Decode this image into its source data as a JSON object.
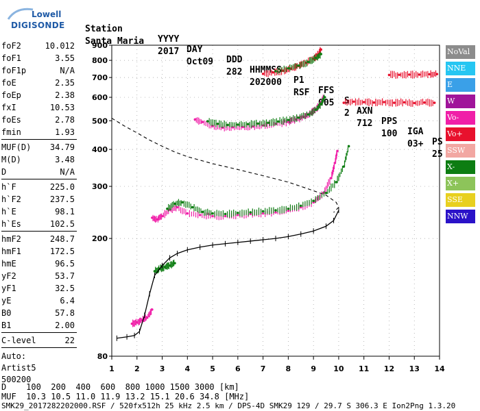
{
  "logo": {
    "line1": "Lowell",
    "line2": "DIGISONDE"
  },
  "header": {
    "labels": [
      "Station",
      "YYYY",
      "DAY",
      "DDD",
      "HHMMSS",
      "P1",
      "FFS",
      "S",
      "AXN",
      "PPS",
      "IGA",
      "PS"
    ],
    "values": [
      "Santa Maria",
      "2017",
      "Oct09",
      "282",
      "202000",
      "RSF",
      "005",
      "2",
      "712",
      "100",
      "03+",
      "25"
    ]
  },
  "params": {
    "group1": [
      {
        "k": "foF2",
        "v": "10.012"
      },
      {
        "k": "foF1",
        "v": "3.55"
      },
      {
        "k": "foF1p",
        "v": "N/A"
      },
      {
        "k": "foE",
        "v": "2.35"
      },
      {
        "k": "foEp",
        "v": "2.38"
      },
      {
        "k": "fxI",
        "v": "10.53"
      },
      {
        "k": "foEs",
        "v": "2.78"
      },
      {
        "k": "fmin",
        "v": "1.93"
      }
    ],
    "group2": [
      {
        "k": "MUF(D)",
        "v": "34.79"
      },
      {
        "k": "M(D)",
        "v": "3.48"
      },
      {
        "k": "D",
        "v": "N/A"
      }
    ],
    "group3": [
      {
        "k": "h`F",
        "v": "225.0"
      },
      {
        "k": "h`F2",
        "v": "237.5"
      },
      {
        "k": "h`E",
        "v": "98.1"
      },
      {
        "k": "h`Es",
        "v": "102.5"
      }
    ],
    "group4": [
      {
        "k": "hmF2",
        "v": "248.7"
      },
      {
        "k": "hmF1",
        "v": "172.5"
      },
      {
        "k": "hmE",
        "v": "96.5"
      },
      {
        "k": "yF2",
        "v": "53.7"
      },
      {
        "k": "yF1",
        "v": "32.5"
      },
      {
        "k": "yE",
        "v": "6.4"
      },
      {
        "k": "B0",
        "v": "57.8"
      },
      {
        "k": "B1",
        "v": "2.00"
      }
    ],
    "group5": [
      {
        "k": "C-level",
        "v": "22"
      }
    ],
    "auto": [
      "Auto:",
      "Artist5",
      "500200"
    ]
  },
  "legend": [
    {
      "label": "NoVal",
      "color": "#8c8c8c"
    },
    {
      "label": "NNE",
      "color": "#26c6f2"
    },
    {
      "label": "E",
      "color": "#3aa0e8"
    },
    {
      "label": "W",
      "color": "#a0149a"
    },
    {
      "label": "Vo-",
      "color": "#f01fa8"
    },
    {
      "label": "Vo+",
      "color": "#e8112d"
    },
    {
      "label": "SSW",
      "color": "#f2a7a2"
    },
    {
      "label": "X-",
      "color": "#0d7d12"
    },
    {
      "label": "X+",
      "color": "#8dc45a"
    },
    {
      "label": "SSE",
      "color": "#e8d020"
    },
    {
      "label": "NNW",
      "color": "#2a12c8"
    }
  ],
  "footer": {
    "line1": "D    100  200  400  600  800 1000 1500 3000 [km]",
    "line2": "MUF  10.3 10.5 11.0 11.9 13.2 15.1 20.6 34.8 [MHz]",
    "line3": "SMK29_2017282202000.RSF / 520fx512h 25 kHz 2.5 km / DPS-4D SMK29 129 / 29.7 S 306.3 E Ion2Png 1.3.20"
  },
  "chart_data": {
    "type": "scatter",
    "xlim": [
      1,
      14
    ],
    "ylim": [
      80,
      900
    ],
    "x_ticks": [
      1,
      2,
      3,
      4,
      5,
      6,
      7,
      8,
      9,
      10,
      11,
      12,
      13,
      14
    ],
    "y_ticks": [
      80,
      200,
      300,
      400,
      500,
      600,
      700,
      800,
      900
    ],
    "y_scale": "log",
    "grid": true,
    "xlabel": "",
    "ylabel": "",
    "series": [
      {
        "color": "#f01fa8",
        "points": [
          [
            2.6,
            235
          ],
          [
            2.8,
            232
          ],
          [
            3.0,
            238
          ],
          [
            3.3,
            250
          ],
          [
            3.6,
            255
          ],
          [
            4.0,
            243
          ],
          [
            4.5,
            240
          ],
          [
            5.0,
            238
          ],
          [
            5.5,
            238
          ],
          [
            6.0,
            240
          ],
          [
            6.5,
            242
          ],
          [
            7.0,
            243
          ],
          [
            7.5,
            245
          ],
          [
            8.0,
            248
          ],
          [
            8.5,
            255
          ],
          [
            9.0,
            265
          ],
          [
            9.4,
            285
          ],
          [
            9.7,
            320
          ],
          [
            9.85,
            360
          ],
          [
            9.95,
            395
          ]
        ]
      },
      {
        "color": "#0d7d12",
        "points": [
          [
            3.2,
            252
          ],
          [
            3.5,
            262
          ],
          [
            3.8,
            265
          ],
          [
            4.2,
            255
          ],
          [
            4.6,
            246
          ],
          [
            5.0,
            243
          ],
          [
            5.5,
            242
          ],
          [
            6.0,
            244
          ],
          [
            6.5,
            245
          ],
          [
            7.0,
            247
          ],
          [
            7.5,
            249
          ],
          [
            8.0,
            252
          ],
          [
            8.5,
            258
          ],
          [
            9.0,
            268
          ],
          [
            9.5,
            285
          ],
          [
            9.9,
            310
          ],
          [
            10.2,
            350
          ],
          [
            10.4,
            410
          ]
        ]
      },
      {
        "color": "#f01fa8",
        "points": [
          [
            4.3,
            505
          ],
          [
            4.6,
            495
          ],
          [
            5.0,
            480
          ],
          [
            5.4,
            474
          ],
          [
            5.8,
            475
          ],
          [
            6.2,
            476
          ],
          [
            6.6,
            478
          ],
          [
            7.0,
            482
          ],
          [
            7.5,
            488
          ],
          [
            8.0,
            495
          ],
          [
            8.3,
            505
          ],
          [
            8.6,
            515
          ],
          [
            8.9,
            530
          ],
          [
            9.1,
            548
          ],
          [
            9.3,
            570
          ],
          [
            9.4,
            600
          ]
        ]
      },
      {
        "color": "#0d7d12",
        "points": [
          [
            4.8,
            498
          ],
          [
            5.2,
            488
          ],
          [
            5.6,
            484
          ],
          [
            6.0,
            485
          ],
          [
            6.4,
            487
          ],
          [
            6.8,
            489
          ],
          [
            7.2,
            492
          ],
          [
            7.6,
            497
          ],
          [
            8.0,
            503
          ],
          [
            8.4,
            512
          ],
          [
            8.8,
            525
          ],
          [
            9.1,
            545
          ],
          [
            9.3,
            570
          ],
          [
            9.45,
            600
          ]
        ]
      },
      {
        "color": "#e8112d",
        "points": [
          [
            7.0,
            720
          ],
          [
            7.4,
            728
          ],
          [
            7.8,
            738
          ],
          [
            8.1,
            750
          ],
          [
            8.4,
            765
          ],
          [
            8.7,
            785
          ],
          [
            9.0,
            810
          ],
          [
            9.2,
            840
          ],
          [
            9.3,
            870
          ]
        ]
      },
      {
        "color": "#0d7d12",
        "points": [
          [
            7.5,
            735
          ],
          [
            8.0,
            752
          ],
          [
            8.4,
            768
          ],
          [
            8.8,
            790
          ],
          [
            9.1,
            815
          ],
          [
            9.3,
            840
          ]
        ]
      },
      {
        "color": "#e8112d",
        "points": [
          [
            10.2,
            575
          ],
          [
            10.6,
            580
          ],
          [
            11.0,
            578
          ],
          [
            11.4,
            576
          ],
          [
            11.8,
            578
          ],
          [
            12.2,
            575
          ],
          [
            12.6,
            577
          ],
          [
            13.0,
            574
          ],
          [
            13.4,
            576
          ],
          [
            13.8,
            575
          ]
        ]
      },
      {
        "color": "#e8112d",
        "points": [
          [
            12.0,
            714
          ],
          [
            12.4,
            715
          ],
          [
            12.8,
            716
          ],
          [
            13.2,
            716
          ],
          [
            13.6,
            718
          ],
          [
            13.9,
            719
          ]
        ]
      },
      {
        "color": "#0d7d12",
        "points": [
          [
            2.7,
            155
          ],
          [
            2.9,
            158
          ],
          [
            3.1,
            160
          ],
          [
            3.3,
            162
          ],
          [
            3.5,
            165
          ]
        ]
      },
      {
        "color": "#f01fa8",
        "points": [
          [
            1.8,
            103
          ],
          [
            2.0,
            104
          ],
          [
            2.2,
            106
          ],
          [
            2.4,
            108
          ],
          [
            2.6,
            115
          ]
        ]
      }
    ],
    "profile_curve": [
      [
        1.2,
        92
      ],
      [
        1.6,
        93
      ],
      [
        1.9,
        94
      ],
      [
        2.1,
        97
      ],
      [
        2.3,
        110
      ],
      [
        2.5,
        130
      ],
      [
        2.7,
        150
      ],
      [
        3.0,
        162
      ],
      [
        3.3,
        172
      ],
      [
        3.6,
        178
      ],
      [
        4.0,
        183
      ],
      [
        4.5,
        187
      ],
      [
        5.0,
        190
      ],
      [
        5.5,
        192
      ],
      [
        6.0,
        194
      ],
      [
        6.5,
        196
      ],
      [
        7.0,
        198
      ],
      [
        7.5,
        200
      ],
      [
        8.0,
        203
      ],
      [
        8.5,
        207
      ],
      [
        9.0,
        212
      ],
      [
        9.5,
        220
      ],
      [
        9.8,
        230
      ],
      [
        10.0,
        249
      ]
    ],
    "dashed_curve": [
      [
        1.0,
        510
      ],
      [
        1.5,
        480
      ],
      [
        2.0,
        455
      ],
      [
        2.5,
        430
      ],
      [
        3.0,
        410
      ],
      [
        3.5,
        392
      ],
      [
        4.0,
        378
      ],
      [
        5.0,
        358
      ],
      [
        6.0,
        342
      ],
      [
        7.0,
        326
      ],
      [
        8.0,
        310
      ],
      [
        8.5,
        300
      ],
      [
        9.0,
        290
      ],
      [
        9.5,
        280
      ],
      [
        9.9,
        265
      ],
      [
        10.0,
        255
      ],
      [
        9.8,
        245
      ]
    ]
  }
}
